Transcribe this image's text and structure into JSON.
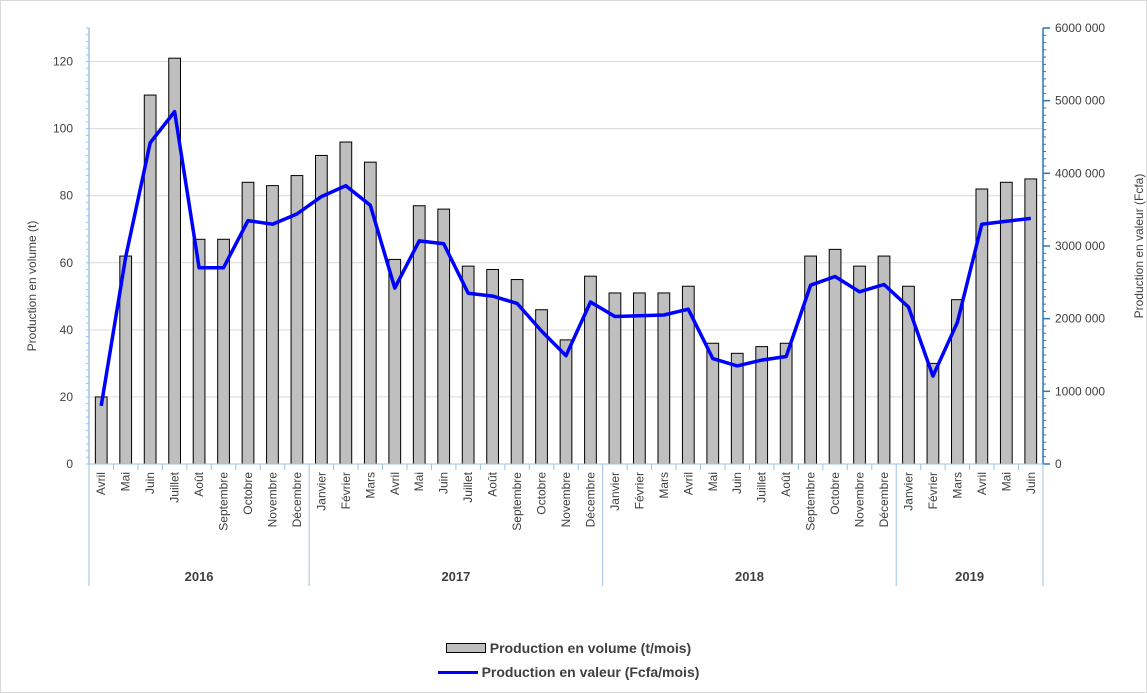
{
  "chart_data": {
    "type": "bar",
    "categories": [
      "Avril",
      "Mai",
      "Juin",
      "Juillet",
      "Août",
      "Septembre",
      "Octobre",
      "Novembre",
      "Décembre",
      "Janvier",
      "Février",
      "Mars",
      "Avril",
      "Mai",
      "Juin",
      "Juillet",
      "Août",
      "Septembre",
      "Octobre",
      "Novembre",
      "Décembre",
      "Janvier",
      "Février",
      "Mars",
      "Avril",
      "Mai",
      "Juin",
      "Juillet",
      "Août",
      "Septembre",
      "Octobre",
      "Novembre",
      "Décembre",
      "Janvier",
      "Février",
      "Mars",
      "Avril",
      "Mai",
      "Juin"
    ],
    "years": [
      {
        "label": "2016",
        "count": 9
      },
      {
        "label": "2017",
        "count": 12
      },
      {
        "label": "2018",
        "count": 12
      },
      {
        "label": "2019",
        "count": 6
      }
    ],
    "series": [
      {
        "name": "Production en volume (t/mois)",
        "type": "bar",
        "axis": "left",
        "color": "#bfbfbf",
        "values": [
          20,
          62,
          110,
          121,
          67,
          67,
          84,
          83,
          86,
          92,
          96,
          90,
          61,
          77,
          76,
          59,
          58,
          55,
          46,
          37,
          56,
          51,
          51,
          51,
          53,
          36,
          33,
          35,
          36,
          62,
          64,
          59,
          62,
          53,
          30,
          49,
          82,
          84,
          85
        ]
      },
      {
        "name": "Production en valeur (Fcfa/mois)",
        "type": "line",
        "axis": "right",
        "color": "#0000ff",
        "values": [
          800000,
          2850000,
          4420000,
          4850000,
          2700000,
          2700000,
          3350000,
          3300000,
          3440000,
          3680000,
          3830000,
          3560000,
          2420000,
          3070000,
          3030000,
          2350000,
          2310000,
          2210000,
          1830000,
          1490000,
          2230000,
          2030000,
          2040000,
          2050000,
          2130000,
          1450000,
          1350000,
          1430000,
          1480000,
          2460000,
          2580000,
          2370000,
          2470000,
          2160000,
          1210000,
          1950000,
          3300000,
          3340000,
          3380000
        ]
      }
    ],
    "ylabel": "Production en volume (t)",
    "ylabel_right": "Production en valeur (Fcfa)",
    "ylim": [
      0,
      130
    ],
    "y_ticks": [
      "0",
      "20",
      "40",
      "60",
      "80",
      "100",
      "120"
    ],
    "ylim_right": [
      0,
      6000000
    ],
    "y_ticks_right": [
      "0",
      "1000 000",
      "2000 000",
      "3000 000",
      "4000 000",
      "5000 000",
      "6000 000"
    ],
    "grid": true,
    "legend_position": "bottom"
  }
}
